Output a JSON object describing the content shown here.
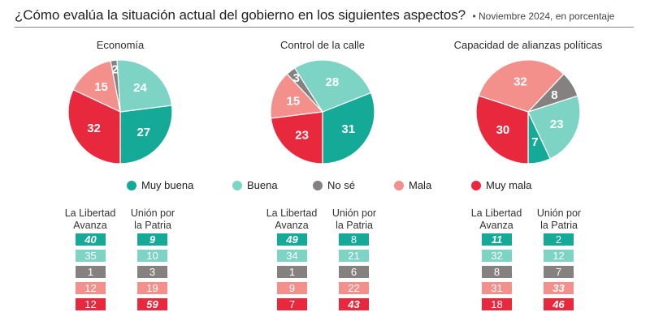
{
  "header": {
    "title": "¿Cómo evalúa la situación actual del gobierno en los siguientes aspectos?",
    "subtitle": "• Noviembre 2024, en porcentaje"
  },
  "categories": [
    "Muy buena",
    "Buena",
    "No sé",
    "Mala",
    "Muy mala"
  ],
  "colors": {
    "Muy buena": "#14aa97",
    "Buena": "#7dd3c4",
    "No sé": "#868181",
    "Mala": "#f3908b",
    "Muy mala": "#e8283d"
  },
  "legend": [
    {
      "label": "Muy buena",
      "color": "#14aa97"
    },
    {
      "label": "Buena",
      "color": "#7dd3c4"
    },
    {
      "label": "No sé",
      "color": "#868181"
    },
    {
      "label": "Mala",
      "color": "#f3908b"
    },
    {
      "label": "Muy mala",
      "color": "#e8283d"
    }
  ],
  "table_headers": {
    "lla": [
      "La Libertad",
      "Avanza"
    ],
    "uxp": [
      "Unión por",
      "la Patria"
    ]
  },
  "chart_data": [
    {
      "type": "pie",
      "title": "Economía",
      "categories": [
        "Muy buena",
        "Buena",
        "No sé",
        "Mala",
        "Muy mala"
      ],
      "values": [
        27,
        24,
        2,
        15,
        32
      ],
      "table": {
        "La Libertad Avanza": {
          "values": [
            40,
            35,
            1,
            12,
            12
          ],
          "emphasized": [
            true,
            false,
            false,
            false,
            false
          ]
        },
        "Unión por la Patria": {
          "values": [
            9,
            10,
            3,
            19,
            59
          ],
          "emphasized": [
            true,
            false,
            false,
            false,
            true
          ]
        }
      }
    },
    {
      "type": "pie",
      "title": "Control de la calle",
      "categories": [
        "Muy buena",
        "Buena",
        "No sé",
        "Mala",
        "Muy mala"
      ],
      "values": [
        31,
        28,
        3,
        15,
        23
      ],
      "table": {
        "La Libertad Avanza": {
          "values": [
            49,
            34,
            1,
            9,
            7
          ],
          "emphasized": [
            true,
            false,
            false,
            false,
            false
          ]
        },
        "Unión por la Patria": {
          "values": [
            8,
            21,
            6,
            22,
            43
          ],
          "emphasized": [
            false,
            false,
            false,
            false,
            true
          ]
        }
      }
    },
    {
      "type": "pie",
      "title": "Capacidad de alianzas políticas",
      "categories": [
        "Muy buena",
        "Buena",
        "No sé",
        "Mala",
        "Muy mala"
      ],
      "values": [
        7,
        23,
        8,
        32,
        30
      ],
      "table": {
        "La Libertad Avanza": {
          "values": [
            11,
            32,
            8,
            31,
            18
          ],
          "emphasized": [
            true,
            false,
            false,
            false,
            false
          ]
        },
        "Unión por la Patria": {
          "values": [
            2,
            12,
            7,
            33,
            46
          ],
          "emphasized": [
            false,
            false,
            false,
            true,
            true
          ]
        }
      }
    }
  ]
}
